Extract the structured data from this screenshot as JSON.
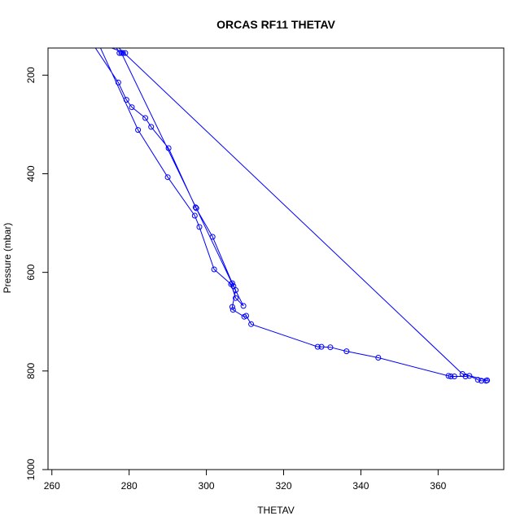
{
  "chart_data": {
    "type": "line",
    "title": "ORCAS RF11 THETAV",
    "xlabel": "THETAV",
    "ylabel": "Pressure (mbar)",
    "xlim": [
      259,
      377
    ],
    "ylim": [
      1000,
      145
    ],
    "y_reversed": true,
    "grid": false,
    "x_ticks": [
      260,
      280,
      300,
      320,
      340,
      360
    ],
    "y_ticks": [
      200,
      400,
      600,
      800,
      1000
    ],
    "colors": {
      "series": "#0000ff",
      "axes": "#000000",
      "background": "#ffffff"
    },
    "series": [
      {
        "style": "lines+points",
        "points": [
          [
            270,
            130
          ],
          [
            277.2,
            215
          ],
          [
            279.3,
            250
          ],
          [
            280.7,
            265
          ],
          [
            284.2,
            287
          ],
          [
            285.7,
            305
          ],
          [
            290.2,
            348
          ],
          [
            297.2,
            468
          ],
          [
            301.6,
            528
          ],
          [
            306.7,
            622
          ],
          [
            307.6,
            636
          ],
          [
            306.7,
            670
          ],
          [
            306.9,
            676
          ],
          [
            309.8,
            690
          ],
          [
            310.3,
            688
          ],
          [
            311.6,
            705
          ],
          [
            328.8,
            751
          ],
          [
            329.8,
            751
          ],
          [
            332.1,
            752
          ],
          [
            336.3,
            760
          ],
          [
            344.5,
            773
          ],
          [
            362.7,
            810
          ],
          [
            363.3,
            811
          ],
          [
            364.2,
            811
          ],
          [
            367.1,
            811
          ],
          [
            368.1,
            810
          ],
          [
            370.3,
            818
          ],
          [
            371.2,
            820
          ],
          [
            372.4,
            820
          ],
          [
            372.7,
            819
          ],
          [
            366.3,
            806
          ],
          [
            276,
            135
          ],
          [
            277.5,
            155
          ],
          [
            278.4,
            155
          ],
          [
            279,
            155
          ],
          [
            272,
            135
          ],
          [
            282.3,
            311
          ],
          [
            290,
            407
          ],
          [
            297.0,
            485
          ],
          [
            298.2,
            508
          ],
          [
            302.0,
            594
          ],
          [
            306.4,
            624
          ],
          [
            307.6,
            652
          ],
          [
            309.6,
            668
          ],
          [
            307.0,
            628
          ],
          [
            297.4,
            470
          ],
          [
            278,
            155
          ]
        ]
      }
    ]
  }
}
